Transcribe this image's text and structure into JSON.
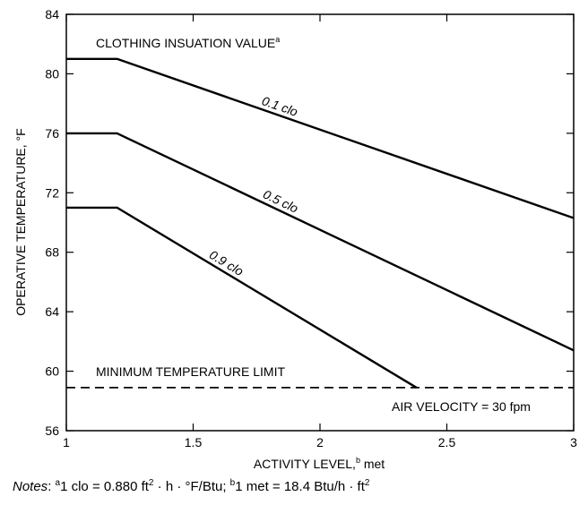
{
  "chart_data": {
    "type": "line",
    "xlabel": "ACTIVITY LEVEL,",
    "xlabel_sup": "b",
    "xlabel_unit": " met",
    "ylabel": "OPERATIVE TEMPERATURE, °F",
    "xlim": [
      1,
      3
    ],
    "ylim": [
      56,
      84
    ],
    "xticks": [
      1,
      1.5,
      2,
      2.5,
      3
    ],
    "xtick_labels": [
      "1",
      "1.5",
      "2",
      "2.5",
      "3"
    ],
    "yticks": [
      56,
      60,
      64,
      68,
      72,
      76,
      80,
      84
    ],
    "ytick_labels": [
      "56",
      "60",
      "64",
      "68",
      "72",
      "76",
      "80",
      "84"
    ],
    "grid": false,
    "series": [
      {
        "name": "0.1 clo",
        "x": [
          1,
          1.2,
          3
        ],
        "y": [
          81,
          81,
          70.3
        ]
      },
      {
        "name": "0.5 clo",
        "x": [
          1,
          1.2,
          3
        ],
        "y": [
          76,
          76,
          61.4
        ]
      },
      {
        "name": "0.9 clo",
        "x": [
          1,
          1.2,
          2.38
        ],
        "y": [
          71,
          71,
          58.9
        ]
      }
    ],
    "reference_line": {
      "label": "MINIMUM TEMPERATURE LIMIT",
      "y": 58.9,
      "style": "dashed"
    },
    "annotations": {
      "legend_title": "CLOTHING INSUATION VALUE",
      "legend_title_sup": "a",
      "air_velocity": "AIR VELOCITY = 30 fpm"
    }
  },
  "notes": {
    "prefix": "Notes",
    "colon": ": ",
    "sup_a": "a",
    "text1": "1 clo = 0.880 ft",
    "sup_2a": "2",
    "text2": " · h · °F/Btu; ",
    "sup_b": "b",
    "text3": "1 met = 18.4 Btu/h · ft",
    "sup_2b": "2"
  }
}
